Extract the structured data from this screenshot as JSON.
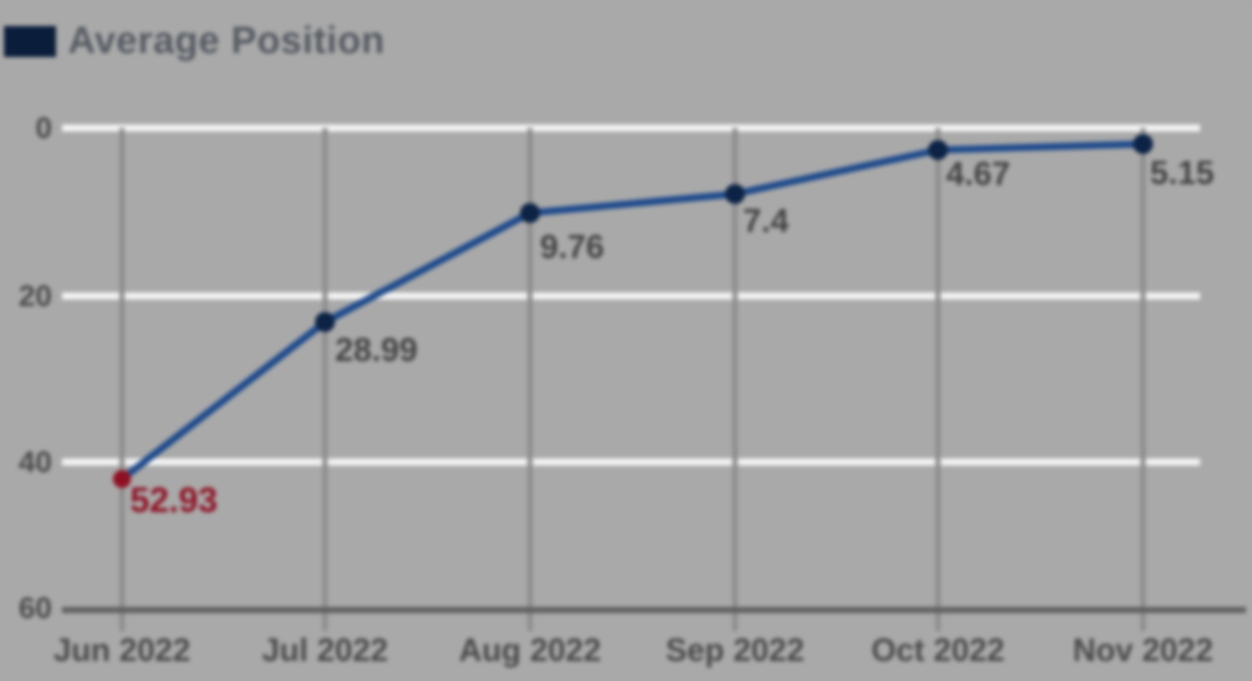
{
  "legend": {
    "label": "Average Position"
  },
  "chart_data": {
    "type": "line",
    "title": "",
    "xlabel": "",
    "ylabel": "",
    "categories": [
      "Jun 2022",
      "Jul 2022",
      "Aug 2022",
      "Sep 2022",
      "Oct 2022",
      "Nov 2022"
    ],
    "series": [
      {
        "name": "Average Position",
        "values": [
          52.93,
          28.99,
          9.76,
          7.4,
          4.67,
          5.15
        ]
      }
    ],
    "point_labels": [
      "52.93",
      "28.99",
      "9.76",
      "7.4",
      "4.67",
      "5.15"
    ],
    "y_ticks": [
      "0",
      "20",
      "40",
      "60"
    ],
    "ylim": [
      0,
      60
    ],
    "y_axis_inverted": true,
    "grid": true,
    "legend_position": "top-left",
    "highlight": {
      "index": 0,
      "label": "52.93"
    }
  },
  "colors": {
    "background": "#a9a9a9",
    "line": "#1e4a8c",
    "point": "#0c2345",
    "highlight": "#8e1123",
    "grid_horizontal": "#f3f3f3",
    "grid_vertical": "#8c8c8c",
    "axis": "#5f5f5f",
    "tick_text": "#4a4a4a",
    "data_label_text": "#434343",
    "legend_swatch": "#0a1d3a"
  }
}
